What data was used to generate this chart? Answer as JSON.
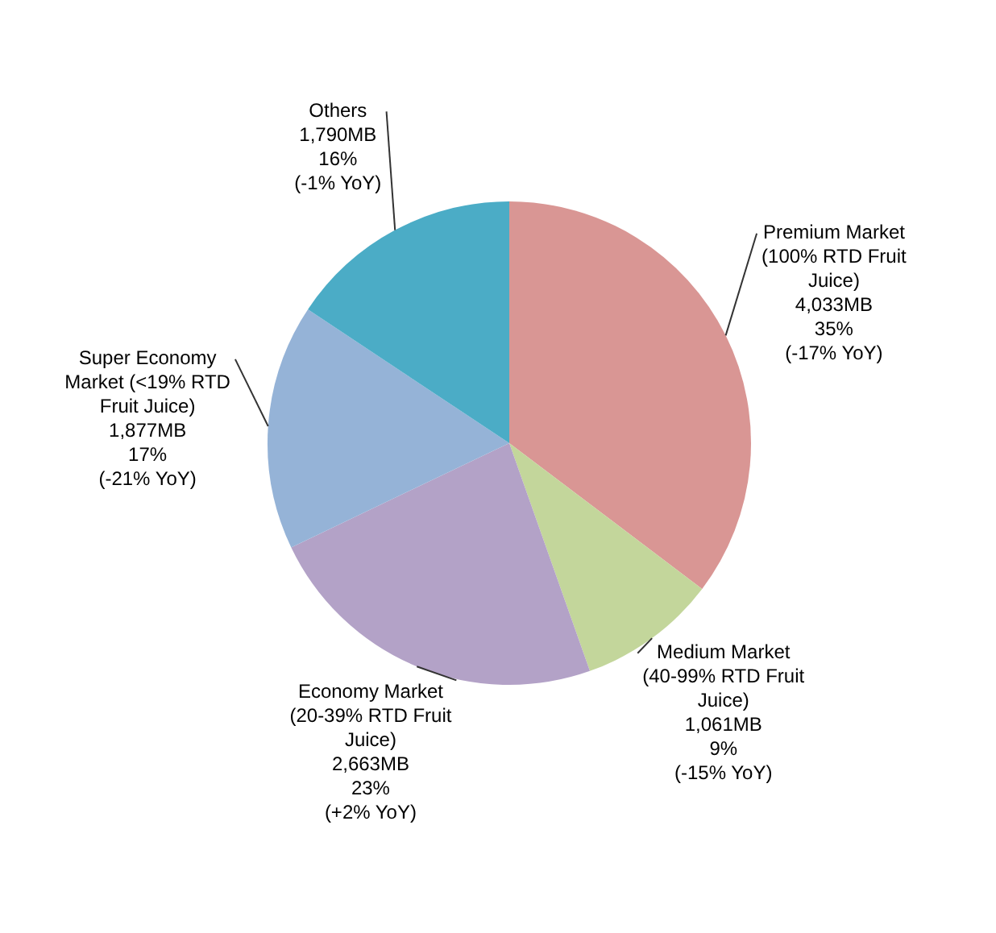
{
  "chart_data": {
    "type": "pie",
    "categories": [
      "Premium Market (100% RTD Fruit Juice)",
      "Medium Market (40-99% RTD Fruit Juice)",
      "Economy Market (20-39% RTD Fruit Juice)",
      "Super Economy Market (<19% RTD Fruit Juice)",
      "Others"
    ],
    "values": [
      4033,
      1061,
      2663,
      1877,
      1790
    ],
    "colors": [
      "#d99694",
      "#c3d69b",
      "#b3a2c7",
      "#95b3d7",
      "#4bacc6"
    ],
    "value_labels": [
      "4,033MB\n35%\n(-17% YoY)",
      "1,061MB\n9%\n(-15% YoY)",
      "2,663MB\n23%\n(+2% YoY)",
      "1,877MB\n17%\n(-21% YoY)",
      "1,790MB\n16%\n(-1% YoY)"
    ],
    "legend": false
  }
}
